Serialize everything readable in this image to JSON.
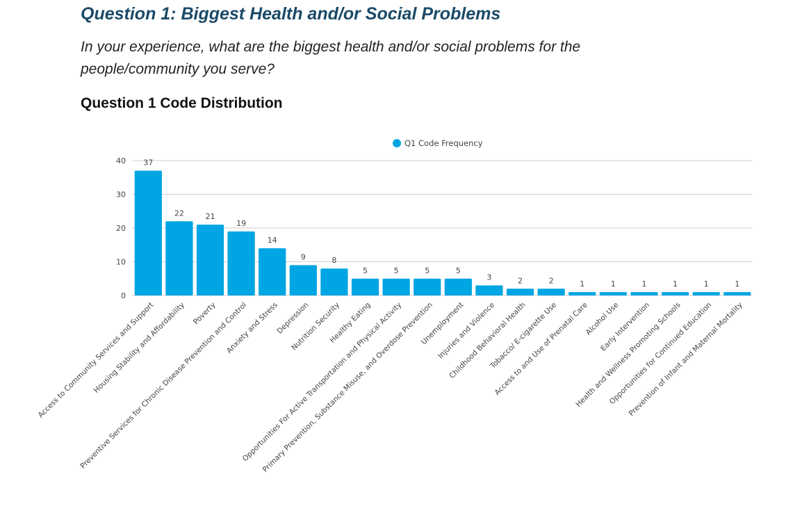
{
  "header": {
    "title": "Question 1: Biggest Health and/or Social Problems",
    "question": "In your experience, what are the biggest health and/or social problems for the people/community you serve?",
    "subtitle": "Question 1 Code Distribution"
  },
  "chart_data": {
    "type": "bar",
    "title": "",
    "xlabel": "",
    "ylabel": "",
    "ylim": [
      0,
      40
    ],
    "yticks": [
      0,
      10,
      20,
      30,
      40
    ],
    "grid": true,
    "legend_position": "top-center",
    "bar_color": "#00a5e3",
    "categories": [
      "Access to Community Services and Support",
      "Housing Stability and Affordability",
      "Poverty",
      "Preventive Services for Chronic Disease Prevention and Control",
      "Anxiety and Stress",
      "Depression",
      "Nutrition Security",
      "Healthy Eating",
      "Opportunities For Active Transportation and Physical Activity",
      "Primary Prevention, Substance Misuse, and Overdose Prevention",
      "Unemployment",
      "Injuries and Violence",
      "Childhood Behavioral Health",
      "Tobacco/ E-cigarette Use",
      "Access to and Use of Prenatal Care",
      "Alcohol Use",
      "Early Intervention",
      "Health and Wellness Promoting Schools",
      "Opportunities for Continued Education",
      "Prevention of Infant and Maternal Mortality"
    ],
    "series": [
      {
        "name": "Q1 Code Frequency",
        "values": [
          37,
          22,
          21,
          19,
          14,
          9,
          8,
          5,
          5,
          5,
          5,
          3,
          2,
          2,
          1,
          1,
          1,
          1,
          1,
          1
        ]
      }
    ]
  }
}
